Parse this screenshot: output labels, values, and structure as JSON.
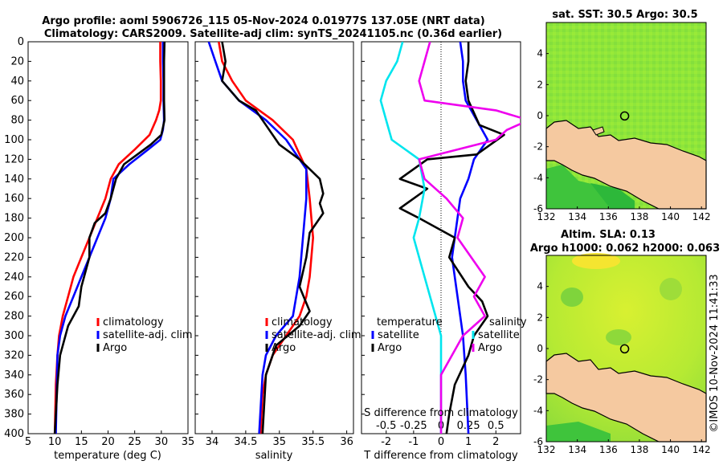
{
  "header": {
    "line1": "Argo profile: aoml 5906726_115 05-Nov-2024 0.01977S 137.05E (NRT data)",
    "line2": "Climatology: CARS2009. Satellite-adj clim: synTS_20241105.nc (0.36d earlier)"
  },
  "colors": {
    "climatology": "#ff0000",
    "satellite": "#0000ff",
    "argo": "#000000",
    "sat_salinity": "#00e5ee",
    "argo_salinity": "#ee00ee",
    "land": "#f5c9a0"
  },
  "chart_data": [
    {
      "type": "line",
      "id": "temperature",
      "xlabel": "temperature (deg C)",
      "ylabel": "",
      "xlim": [
        5,
        35
      ],
      "ylim": [
        400,
        0
      ],
      "xticks": [
        "5",
        "10",
        "15",
        "20",
        "25",
        "30",
        "35"
      ],
      "yticks": [
        "0",
        "20",
        "40",
        "60",
        "80",
        "100",
        "120",
        "140",
        "160",
        "180",
        "200",
        "220",
        "240",
        "260",
        "280",
        "300",
        "320",
        "340",
        "360",
        "380",
        "400"
      ],
      "legend": [
        "climatology",
        "satellite-adj. clim",
        "Argo"
      ],
      "series": [
        {
          "name": "climatology",
          "x": [
            29.8,
            29.8,
            29.9,
            29.9,
            29.6,
            29.0,
            27.8,
            25.0,
            22.0,
            20.5,
            19.5,
            18.0,
            16.5,
            15.0,
            13.5,
            12.5,
            11.5,
            10.8,
            10.5,
            10.2,
            10.0
          ],
          "y": [
            0,
            20,
            40,
            60,
            70,
            80,
            95,
            110,
            125,
            140,
            160,
            180,
            200,
            220,
            240,
            260,
            280,
            300,
            320,
            350,
            400
          ]
        },
        {
          "name": "satellite-adj. clim",
          "x": [
            30.3,
            30.3,
            30.4,
            30.4,
            30.5,
            30.3,
            29.8,
            27.5,
            24.0,
            21.0,
            20.5,
            19.5,
            18.0,
            16.5,
            15.0,
            13.5,
            12.0,
            11.0,
            10.5,
            10.2
          ],
          "y": [
            0,
            20,
            40,
            60,
            80,
            90,
            100,
            110,
            125,
            140,
            160,
            180,
            200,
            220,
            240,
            260,
            280,
            300,
            320,
            400
          ]
        },
        {
          "name": "Argo",
          "x": [
            30.6,
            30.5,
            30.5,
            30.5,
            30.6,
            30.0,
            28.0,
            25.5,
            23.0,
            21.5,
            20.5,
            19.5,
            17.5,
            16.5,
            16.5,
            15.0,
            14.5,
            12.5,
            11.0,
            10.5,
            10.0
          ],
          "y": [
            0,
            20,
            40,
            60,
            80,
            95,
            105,
            115,
            125,
            140,
            160,
            175,
            185,
            200,
            220,
            250,
            270,
            290,
            320,
            350,
            400
          ]
        }
      ]
    },
    {
      "type": "line",
      "id": "salinity",
      "xlabel": "salinity",
      "ylabel": "",
      "xlim": [
        33.75,
        36.1
      ],
      "ylim": [
        400,
        0
      ],
      "xticks": [
        "34",
        "34.5",
        "35",
        "35.5",
        "36"
      ],
      "legend": [
        "climatology",
        "satellite-adj. clim",
        "Argo"
      ],
      "series": [
        {
          "name": "climatology",
          "x": [
            34.1,
            34.15,
            34.3,
            34.5,
            34.9,
            35.2,
            35.4,
            35.45,
            35.5,
            35.45,
            35.4,
            35.3,
            35.1,
            34.9,
            34.8,
            34.75,
            34.72
          ],
          "y": [
            0,
            20,
            40,
            60,
            80,
            100,
            130,
            160,
            200,
            240,
            260,
            280,
            300,
            320,
            340,
            360,
            400
          ]
        },
        {
          "name": "satellite-adj. clim",
          "x": [
            33.95,
            34.05,
            34.15,
            34.4,
            34.8,
            35.1,
            35.4,
            35.4,
            35.35,
            35.3,
            35.2,
            34.95,
            34.8,
            34.75,
            34.7
          ],
          "y": [
            0,
            20,
            40,
            60,
            80,
            100,
            130,
            160,
            200,
            240,
            280,
            300,
            320,
            340,
            400
          ]
        },
        {
          "name": "Argo",
          "x": [
            34.15,
            34.2,
            34.15,
            34.4,
            34.65,
            34.8,
            35.0,
            35.3,
            35.6,
            35.65,
            35.6,
            35.65,
            35.45,
            35.4,
            35.3,
            35.45,
            35.3,
            34.95,
            34.8,
            34.75
          ],
          "y": [
            0,
            20,
            40,
            60,
            70,
            85,
            105,
            120,
            140,
            155,
            165,
            175,
            195,
            220,
            250,
            275,
            290,
            310,
            340,
            400
          ]
        }
      ]
    },
    {
      "type": "line",
      "id": "difference",
      "xlabel": "T difference from climatology",
      "xlabel_top": "S difference from climatology",
      "xlim": [
        -2.9,
        2.9
      ],
      "ylim": [
        400,
        0
      ],
      "xticks": [
        "-2",
        "-1",
        "0",
        "1",
        "2"
      ],
      "xticks_top": [
        "-0.5",
        "-0.25",
        "0",
        "0.25",
        "0.5"
      ],
      "legend_left_title": "temperature",
      "legend_right_title": "salinity",
      "legend_left": [
        "satellite",
        "Argo"
      ],
      "legend_right": [
        "satellite",
        "Argo"
      ],
      "series": [
        {
          "name": "T satellite",
          "x": [
            0.7,
            0.8,
            0.8,
            0.9,
            1.3,
            1.7,
            1.2,
            1.0,
            0.7,
            0.6,
            0.5,
            0.4,
            0.5,
            0.6,
            0.7,
            0.8,
            0.9,
            1.0
          ],
          "y": [
            0,
            20,
            40,
            60,
            80,
            100,
            120,
            140,
            160,
            180,
            200,
            220,
            240,
            260,
            280,
            300,
            340,
            400
          ]
        },
        {
          "name": "T Argo",
          "x": [
            1.0,
            1.0,
            0.9,
            1.0,
            1.4,
            2.3,
            1.3,
            -0.5,
            -1.5,
            -0.5,
            -1.5,
            -0.8,
            0.5,
            0.3,
            1.0,
            1.5,
            1.7,
            1.2,
            1.0,
            0.5,
            0.3,
            0.2
          ],
          "y": [
            0,
            20,
            40,
            60,
            85,
            95,
            115,
            120,
            140,
            150,
            170,
            180,
            200,
            220,
            250,
            265,
            280,
            300,
            320,
            350,
            380,
            400
          ]
        },
        {
          "name": "S satellite",
          "x": [
            -0.35,
            -0.4,
            -0.5,
            -0.55,
            -0.5,
            -0.45,
            -0.2,
            -0.15,
            -0.2,
            -0.25,
            -0.15,
            0.0,
            0.0
          ],
          "y": [
            0,
            20,
            40,
            60,
            80,
            100,
            120,
            150,
            180,
            200,
            240,
            300,
            400
          ]
        },
        {
          "name": "S Argo",
          "x": [
            -0.1,
            -0.15,
            -0.2,
            -0.15,
            0.5,
            0.8,
            0.6,
            0.5,
            -0.2,
            -0.15,
            0.05,
            0.2,
            0.15,
            0.4,
            0.3,
            0.4,
            0.2,
            0.0,
            0.0
          ],
          "y": [
            0,
            20,
            40,
            60,
            70,
            80,
            90,
            100,
            120,
            140,
            160,
            180,
            200,
            240,
            260,
            280,
            300,
            340,
            400
          ]
        }
      ]
    },
    {
      "type": "heatmap",
      "id": "sst-map",
      "title": "sat. SST: 30.5  Argo: 30.5",
      "xlim": [
        132,
        142.3
      ],
      "ylim": [
        -6,
        6
      ],
      "xticks": [
        "132",
        "134",
        "136",
        "138",
        "140",
        "142"
      ],
      "yticks": [
        "4",
        "2",
        "0",
        "-2",
        "-4",
        "-6"
      ],
      "argo_position": [
        137.05,
        -0.02
      ]
    },
    {
      "type": "heatmap",
      "id": "sla-map",
      "title": "Altim. SLA: 0.13",
      "subtitle": "Argo h1000: 0.062 h2000: 0.063",
      "xlim": [
        132,
        142.3
      ],
      "ylim": [
        -6,
        6
      ],
      "xticks": [
        "132",
        "134",
        "136",
        "138",
        "140",
        "142"
      ],
      "yticks": [
        "4",
        "2",
        "0",
        "-2",
        "-4",
        "-6"
      ],
      "argo_position": [
        137.05,
        -0.02
      ]
    }
  ],
  "watermark": "©IMOS 10-Nov-2024 11:41:33"
}
